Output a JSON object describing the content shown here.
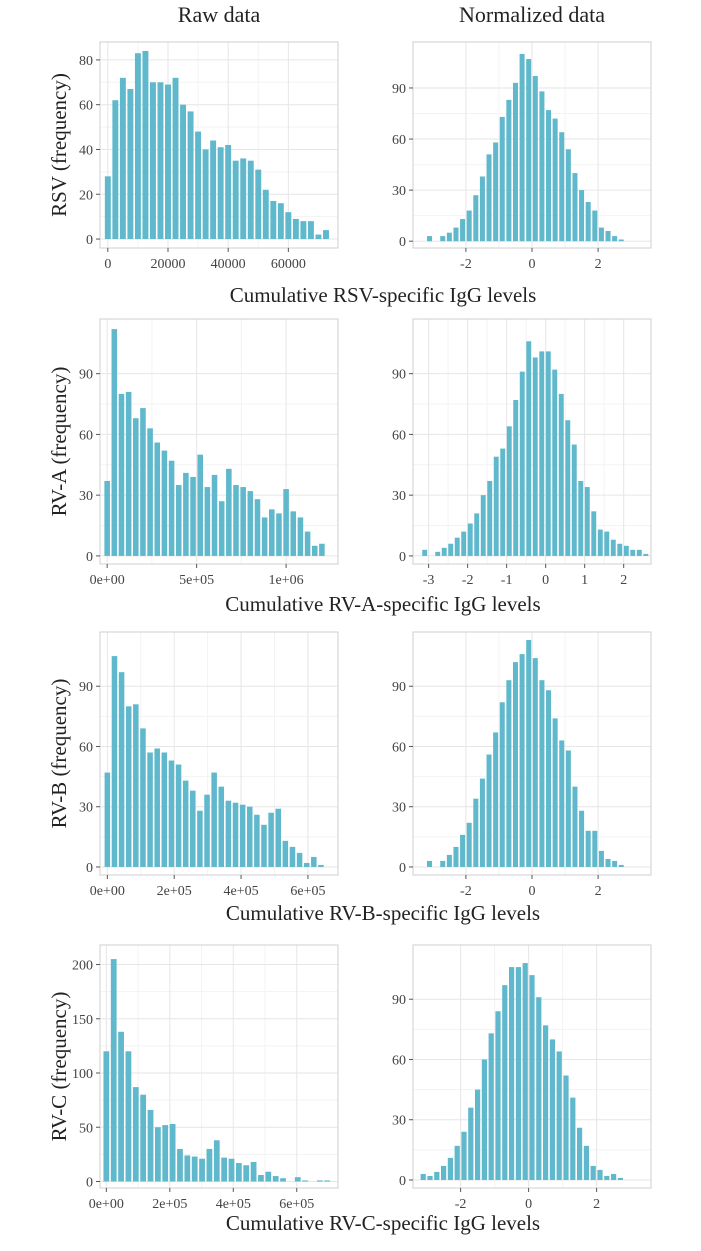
{
  "column_titles": [
    "Raw data",
    "Normalized data"
  ],
  "colors": {
    "bar": "#5fb8cb",
    "panel_border": "#cfcfcf",
    "grid_major": "#e6e6e6",
    "grid_minor": "#f3f3f3",
    "text": "#333333"
  },
  "chart_data": [
    {
      "type": "bar",
      "row": 0,
      "col": 0,
      "title": "",
      "ylabel": "RSV (frequency)",
      "xlabel": "Cumulative RSV-specific IgG levels",
      "xlim": [
        -2600,
        76500
      ],
      "ylim": [
        -4,
        88
      ],
      "xticks": [
        0,
        20000,
        40000,
        60000
      ],
      "xtick_labels": [
        "0",
        "20000",
        "40000",
        "60000"
      ],
      "yticks": [
        0,
        20,
        40,
        60,
        80
      ],
      "ytick_labels": [
        "0",
        "20",
        "40",
        "60",
        "80"
      ],
      "binwidth": 2500,
      "x": [
        0,
        2500,
        5000,
        7500,
        10000,
        12500,
        15000,
        17500,
        20000,
        22500,
        25000,
        27500,
        30000,
        32500,
        35000,
        37500,
        40000,
        42500,
        45000,
        47500,
        50000,
        52500,
        55000,
        57500,
        60000,
        62500,
        65000,
        67500,
        70000,
        72500
      ],
      "values": [
        28,
        62,
        72,
        67,
        83,
        84,
        70,
        70,
        69,
        72,
        60,
        57,
        48,
        40,
        44,
        41,
        42,
        35,
        36,
        35,
        31,
        22,
        17,
        16,
        12,
        9,
        8,
        8,
        2,
        4
      ]
    },
    {
      "type": "bar",
      "row": 0,
      "col": 1,
      "title": "",
      "ylabel": "",
      "xlabel": "",
      "xlim": [
        -3.6,
        3.6
      ],
      "ylim": [
        -4,
        117
      ],
      "xticks": [
        -2,
        0,
        2
      ],
      "xtick_labels": [
        "-2",
        "0",
        "2"
      ],
      "yticks": [
        0,
        30,
        60,
        90
      ],
      "ytick_labels": [
        "0",
        "30",
        "60",
        "90"
      ],
      "binwidth": 0.2,
      "x": [
        -3.1,
        -2.9,
        -2.7,
        -2.5,
        -2.3,
        -2.1,
        -1.9,
        -1.7,
        -1.5,
        -1.3,
        -1.1,
        -0.9,
        -0.7,
        -0.5,
        -0.3,
        -0.1,
        0.1,
        0.3,
        0.5,
        0.7,
        0.9,
        1.1,
        1.3,
        1.5,
        1.7,
        1.9,
        2.1,
        2.3,
        2.5,
        2.7,
        2.9
      ],
      "values": [
        3,
        0,
        3,
        5,
        8,
        13,
        18,
        27,
        38,
        51,
        58,
        73,
        83,
        93,
        110,
        107,
        97,
        88,
        77,
        72,
        64,
        54,
        40,
        30,
        23,
        18,
        8,
        6,
        3,
        1,
        0
      ]
    },
    {
      "type": "bar",
      "row": 1,
      "col": 0,
      "title": "",
      "ylabel": "RV-A (frequency)",
      "xlabel": "Cumulative RV-A-specific IgG levels",
      "xlim": [
        -40000,
        1290000
      ],
      "ylim": [
        -4,
        117
      ],
      "xticks": [
        0,
        500000,
        1000000
      ],
      "xtick_labels": [
        "0e+00",
        "5e+05",
        "1e+06"
      ],
      "yticks": [
        0,
        30,
        60,
        90
      ],
      "ytick_labels": [
        "0",
        "30",
        "60",
        "90"
      ],
      "binwidth": 40000,
      "x": [
        0,
        40000,
        80000,
        120000,
        160000,
        200000,
        240000,
        280000,
        320000,
        360000,
        400000,
        440000,
        480000,
        520000,
        560000,
        600000,
        640000,
        680000,
        720000,
        760000,
        800000,
        840000,
        880000,
        920000,
        960000,
        1000000,
        1040000,
        1080000,
        1120000,
        1160000,
        1200000
      ],
      "values": [
        37,
        112,
        80,
        81,
        68,
        73,
        63,
        56,
        52,
        47,
        35,
        41,
        39,
        50,
        34,
        40,
        27,
        43,
        35,
        34,
        32,
        28,
        19,
        23,
        21,
        33,
        22,
        19,
        12,
        5,
        6
      ]
    },
    {
      "type": "bar",
      "row": 1,
      "col": 1,
      "title": "",
      "ylabel": "",
      "xlabel": "",
      "xlim": [
        -3.4,
        2.7
      ],
      "ylim": [
        -4,
        117
      ],
      "xticks": [
        -3,
        -2,
        -1,
        0,
        1,
        2
      ],
      "xtick_labels": [
        "-3",
        "-2",
        "-1",
        "0",
        "1",
        "2"
      ],
      "yticks": [
        0,
        30,
        60,
        90
      ],
      "ytick_labels": [
        "0",
        "30",
        "60",
        "90"
      ],
      "binwidth": 0.167,
      "x": [
        -3.1,
        -2.933,
        -2.767,
        -2.6,
        -2.433,
        -2.267,
        -2.1,
        -1.933,
        -1.767,
        -1.6,
        -1.433,
        -1.267,
        -1.1,
        -0.933,
        -0.767,
        -0.6,
        -0.433,
        -0.267,
        -0.1,
        0.067,
        0.233,
        0.4,
        0.567,
        0.733,
        0.9,
        1.067,
        1.233,
        1.4,
        1.567,
        1.733,
        1.9,
        2.067,
        2.233,
        2.4,
        2.567
      ],
      "values": [
        3,
        0,
        2,
        4,
        6,
        9,
        12,
        16,
        21,
        30,
        37,
        49,
        53,
        64,
        77,
        91,
        106,
        98,
        101,
        101,
        92,
        80,
        67,
        55,
        37,
        34,
        22,
        13,
        12,
        8,
        6,
        5,
        3,
        3,
        1
      ]
    },
    {
      "type": "bar",
      "row": 2,
      "col": 0,
      "title": "",
      "ylabel": "RV-B (frequency)",
      "xlabel": "Cumulative RV-B-specific IgG levels",
      "xlim": [
        -22000,
        690000
      ],
      "ylim": [
        -4,
        117
      ],
      "xticks": [
        0,
        200000,
        400000,
        600000
      ],
      "xtick_labels": [
        "0e+00",
        "2e+05",
        "4e+05",
        "6e+05"
      ],
      "yticks": [
        0,
        30,
        60,
        90
      ],
      "ytick_labels": [
        "0",
        "30",
        "60",
        "90"
      ],
      "binwidth": 21300,
      "x": [
        0,
        21300,
        42600,
        63900,
        85200,
        106500,
        127800,
        149100,
        170400,
        191700,
        213000,
        234300,
        255600,
        276900,
        298200,
        319500,
        340800,
        362100,
        383400,
        404700,
        426000,
        447300,
        468600,
        489900,
        511200,
        532500,
        553800,
        575100,
        596400,
        617700,
        639000
      ],
      "values": [
        47,
        105,
        97,
        80,
        81,
        69,
        57,
        59,
        57,
        53,
        51,
        43,
        38,
        28,
        36,
        47,
        40,
        33,
        32,
        31,
        30,
        26,
        21,
        27,
        29,
        13,
        10,
        7,
        2,
        5,
        1
      ]
    },
    {
      "type": "bar",
      "row": 2,
      "col": 1,
      "title": "",
      "ylabel": "",
      "xlabel": "",
      "xlim": [
        -3.6,
        3.6
      ],
      "ylim": [
        -4,
        117
      ],
      "xticks": [
        -2,
        0,
        2
      ],
      "xtick_labels": [
        "-2",
        "0",
        "2"
      ],
      "yticks": [
        0,
        30,
        60,
        90
      ],
      "ytick_labels": [
        "0",
        "30",
        "60",
        "90"
      ],
      "binwidth": 0.2,
      "x": [
        -3.1,
        -2.9,
        -2.7,
        -2.5,
        -2.3,
        -2.1,
        -1.9,
        -1.7,
        -1.5,
        -1.3,
        -1.1,
        -0.9,
        -0.7,
        -0.5,
        -0.3,
        -0.1,
        0.1,
        0.3,
        0.5,
        0.7,
        0.9,
        1.1,
        1.3,
        1.5,
        1.7,
        1.9,
        2.1,
        2.3,
        2.5,
        2.7,
        2.9
      ],
      "values": [
        3,
        0,
        3,
        6,
        10,
        16,
        22,
        34,
        44,
        56,
        67,
        82,
        93,
        102,
        106,
        113,
        104,
        93,
        88,
        74,
        63,
        58,
        40,
        28,
        18,
        18,
        8,
        4,
        3,
        1,
        0
      ]
    },
    {
      "type": "bar",
      "row": 3,
      "col": 0,
      "title": "",
      "ylabel": "RV-C (frequency)",
      "xlabel": "Cumulative RV-C-specific IgG levels",
      "xlim": [
        -20000,
        730000
      ],
      "ylim": [
        -6,
        218
      ],
      "xticks": [
        0,
        200000,
        400000,
        600000
      ],
      "xtick_labels": [
        "0e+00",
        "2e+05",
        "4e+05",
        "6e+05"
      ],
      "yticks": [
        0,
        50,
        100,
        150,
        200
      ],
      "ytick_labels": [
        "0",
        "50",
        "100",
        "150",
        "200"
      ],
      "binwidth": 23200,
      "x": [
        0,
        23200,
        46400,
        69600,
        92800,
        116000,
        139200,
        162400,
        185600,
        208800,
        232000,
        255200,
        278400,
        301600,
        324800,
        348000,
        371200,
        394400,
        417600,
        440800,
        464000,
        487200,
        510400,
        533600,
        556800,
        580000,
        603200,
        626400,
        649600,
        672800,
        696000
      ],
      "values": [
        120,
        205,
        138,
        120,
        87,
        80,
        66,
        50,
        52,
        53,
        30,
        24,
        23,
        21,
        30,
        38,
        22,
        21,
        17,
        15,
        18,
        6,
        9,
        5,
        3,
        0,
        4,
        1,
        0,
        1,
        1
      ]
    },
    {
      "type": "bar",
      "row": 3,
      "col": 1,
      "title": "",
      "ylabel": "",
      "xlabel": "",
      "xlim": [
        -3.4,
        3.6
      ],
      "ylim": [
        -4,
        117
      ],
      "xticks": [
        -2,
        0,
        2
      ],
      "xtick_labels": [
        "-2",
        "0",
        "2"
      ],
      "yticks": [
        0,
        30,
        60,
        90
      ],
      "ytick_labels": [
        "0",
        "30",
        "60",
        "90"
      ],
      "binwidth": 0.2,
      "x": [
        -3.1,
        -2.9,
        -2.7,
        -2.5,
        -2.3,
        -2.1,
        -1.9,
        -1.7,
        -1.5,
        -1.3,
        -1.1,
        -0.9,
        -0.7,
        -0.5,
        -0.3,
        -0.1,
        0.1,
        0.3,
        0.5,
        0.7,
        0.9,
        1.1,
        1.3,
        1.5,
        1.7,
        1.9,
        2.1,
        2.3,
        2.5,
        2.7
      ],
      "values": [
        3,
        2,
        4,
        7,
        11,
        17,
        24,
        36,
        45,
        60,
        73,
        84,
        97,
        106,
        106,
        108,
        102,
        91,
        77,
        70,
        64,
        52,
        41,
        26,
        17,
        7,
        5,
        2,
        3,
        1
      ]
    }
  ]
}
